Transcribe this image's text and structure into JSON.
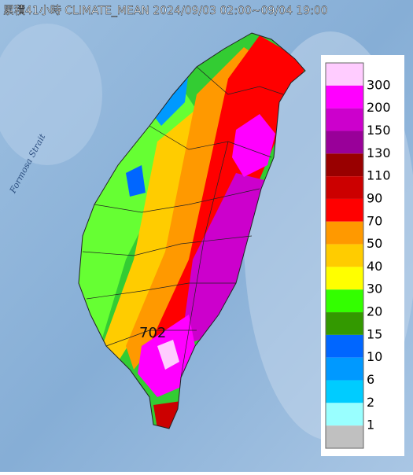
{
  "title": "累積41小時 CLIMATE_MEAN 2024/09/03 02:00~09/04 19:00",
  "sea_label": "Formosa Strait",
  "peak_label": "702",
  "legend": {
    "colors": [
      "#ffccff",
      "#ff00ff",
      "#cc00cc",
      "#990099",
      "#990000",
      "#cc0000",
      "#ff0000",
      "#ff9900",
      "#ffcc00",
      "#ffff00",
      "#33ff00",
      "#339900",
      "#0066ff",
      "#0099ff",
      "#00ccff",
      "#99ffff",
      "#c0c0c0"
    ],
    "labels": [
      "300",
      "200",
      "150",
      "130",
      "110",
      "90",
      "70",
      "50",
      "40",
      "30",
      "20",
      "15",
      "10",
      "6",
      "2",
      "1"
    ]
  }
}
